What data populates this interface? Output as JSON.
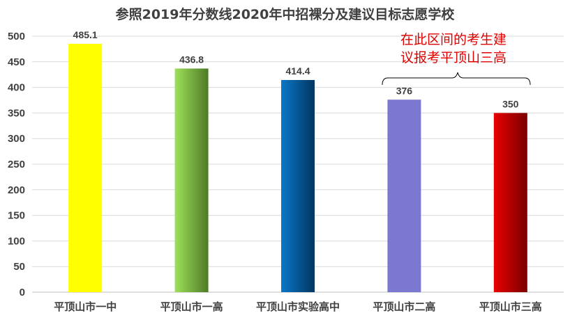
{
  "chart_data": {
    "type": "bar",
    "title": "参照2019年分数线2020年中招裸分及建议目标志愿学校",
    "categories": [
      "平顶山市一中",
      "平顶山市一高",
      "平顶山市实验高中",
      "平顶山市二高",
      "平顶山市三高"
    ],
    "values": [
      485.1,
      436.8,
      414.4,
      376,
      350
    ],
    "value_labels": [
      "485.1",
      "436.8",
      "414.4",
      "376",
      "350"
    ],
    "colors": [
      [
        "#ffff00",
        "#ffff00"
      ],
      [
        "#9ee05a",
        "#4e7a26"
      ],
      [
        "#0a78c8",
        "#003560"
      ],
      [
        "#7b78d2",
        "#7b78d2"
      ],
      [
        "#e80000",
        "#7a0000"
      ]
    ],
    "xlabel": "",
    "ylabel": "",
    "ylim": [
      0,
      500
    ],
    "yticks": [
      "0",
      "50",
      "100",
      "150",
      "200",
      "250",
      "300",
      "350",
      "400",
      "450",
      "500"
    ],
    "grid": true,
    "annotation": {
      "line1": "在此区间的考生建",
      "line2": "议报考平顶山三高",
      "color": "#e00000"
    }
  }
}
